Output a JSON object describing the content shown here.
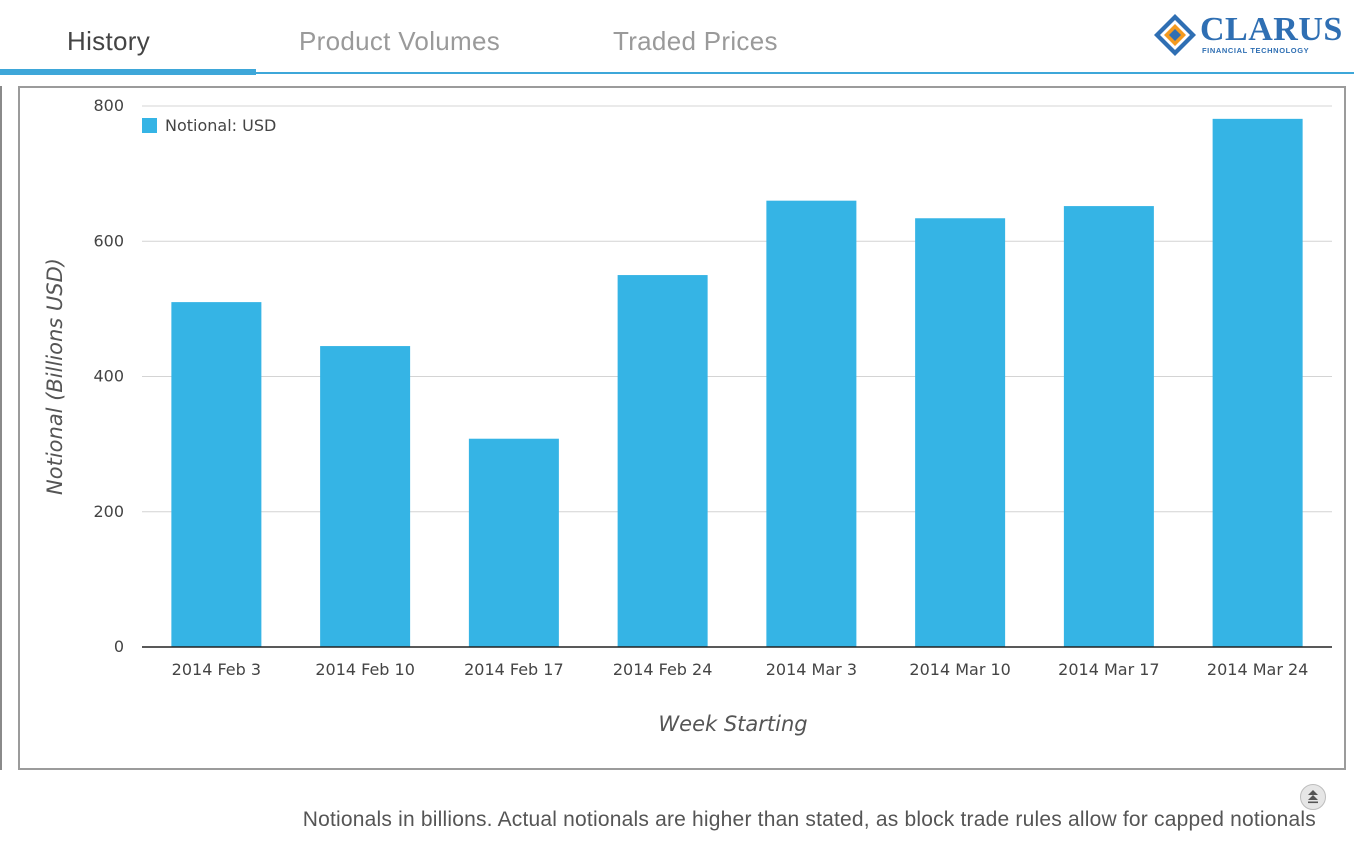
{
  "tabs": [
    {
      "label": "History",
      "active": true
    },
    {
      "label": "Product Volumes",
      "active": false
    },
    {
      "label": "Traded Prices",
      "active": false
    }
  ],
  "logo": {
    "name": "CLARUS",
    "subtitle": "FINANCIAL TECHNOLOGY"
  },
  "colors": {
    "accent": "#3ea7d9",
    "bar": "#35b4e5",
    "logo_blue": "#2f6fb3",
    "logo_orange": "#f39a1f"
  },
  "chart_data": {
    "type": "bar",
    "categories": [
      "2014 Feb 3",
      "2014 Feb 10",
      "2014 Feb 17",
      "2014 Feb 24",
      "2014 Mar 3",
      "2014 Mar 10",
      "2014 Mar 17",
      "2014 Mar 24"
    ],
    "series": [
      {
        "name": "Notional: USD",
        "values": [
          510,
          445,
          308,
          550,
          660,
          634,
          652,
          781
        ]
      }
    ],
    "xlabel": "Week Starting",
    "ylabel": "Notional (Billions USD)",
    "ylim": [
      0,
      800
    ],
    "yticks": [
      0,
      200,
      400,
      600,
      800
    ],
    "grid": true,
    "legend_position": "top-left"
  },
  "footnote": "Notionals in billions. Actual notionals are higher than stated, as block trade rules allow for capped notionals",
  "icons": {
    "scroll_top": "scroll-to-top-icon"
  }
}
